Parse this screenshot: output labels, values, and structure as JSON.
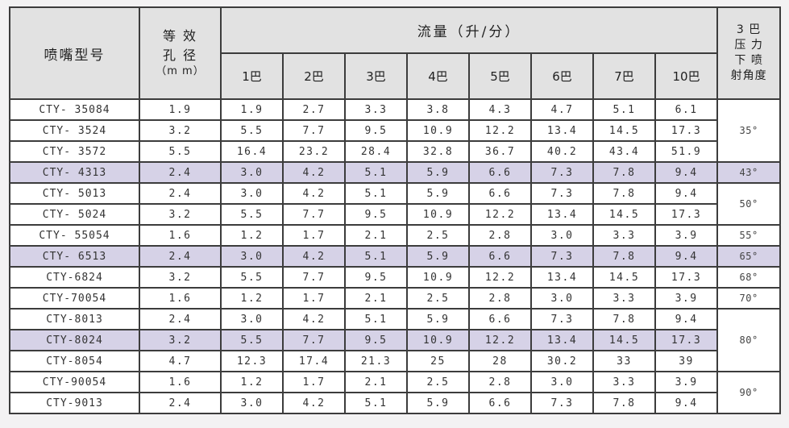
{
  "colors": {
    "canvas_bg": "#f3f2f3",
    "header_bg": "#e2e2e2",
    "highlight_bg": "#d6d2e7",
    "grid_border": "#3c3c3c",
    "row_bg": "#ffffff",
    "text": "#333333"
  },
  "table": {
    "header": {
      "model": "喷嘴型号",
      "aperture_lines": [
        "等 效",
        "孔 径",
        "（m m）"
      ],
      "flow_group": "流量（升/分）",
      "pressures": [
        "1巴",
        "2巴",
        "3巴",
        "4巴",
        "5巴",
        "6巴",
        "7巴",
        "10巴"
      ],
      "angle_lines": [
        "3 巴",
        "压 力",
        "下 喷",
        "射角度"
      ]
    },
    "rows": [
      {
        "model": "CTY- 35084",
        "aperture": "1.9",
        "flows": [
          "1.9",
          "2.7",
          "3.3",
          "3.8",
          "4.3",
          "4.7",
          "5.1",
          "6.1"
        ],
        "highlight": false,
        "angle": "35°",
        "angle_rowspan": 3
      },
      {
        "model": "CTY- 3524",
        "aperture": "3.2",
        "flows": [
          "5.5",
          "7.7",
          "9.5",
          "10.9",
          "12.2",
          "13.4",
          "14.5",
          "17.3"
        ],
        "highlight": false,
        "angle": null
      },
      {
        "model": "CTY- 3572",
        "aperture": "5.5",
        "flows": [
          "16.4",
          "23.2",
          "28.4",
          "32.8",
          "36.7",
          "40.2",
          "43.4",
          "51.9"
        ],
        "highlight": false,
        "angle": null
      },
      {
        "model": "CTY- 4313",
        "aperture": "2.4",
        "flows": [
          "3.0",
          "4.2",
          "5.1",
          "5.9",
          "6.6",
          "7.3",
          "7.8",
          "9.4"
        ],
        "highlight": true,
        "angle": "43°",
        "angle_rowspan": 1
      },
      {
        "model": "CTY- 5013",
        "aperture": "2.4",
        "flows": [
          "3.0",
          "4.2",
          "5.1",
          "5.9",
          "6.6",
          "7.3",
          "7.8",
          "9.4"
        ],
        "highlight": false,
        "angle": "50°",
        "angle_rowspan": 2
      },
      {
        "model": "CTY- 5024",
        "aperture": "3.2",
        "flows": [
          "5.5",
          "7.7",
          "9.5",
          "10.9",
          "12.2",
          "13.4",
          "14.5",
          "17.3"
        ],
        "highlight": false,
        "angle": null
      },
      {
        "model": "CTY- 55054",
        "aperture": "1.6",
        "flows": [
          "1.2",
          "1.7",
          "2.1",
          "2.5",
          "2.8",
          "3.0",
          "3.3",
          "3.9"
        ],
        "highlight": false,
        "angle": "55°",
        "angle_rowspan": 1
      },
      {
        "model": "CTY- 6513",
        "aperture": "2.4",
        "flows": [
          "3.0",
          "4.2",
          "5.1",
          "5.9",
          "6.6",
          "7.3",
          "7.8",
          "9.4"
        ],
        "highlight": true,
        "angle": "65°",
        "angle_rowspan": 1
      },
      {
        "model": "CTY-6824",
        "aperture": "3.2",
        "flows": [
          "5.5",
          "7.7",
          "9.5",
          "10.9",
          "12.2",
          "13.4",
          "14.5",
          "17.3"
        ],
        "highlight": false,
        "angle": "68°",
        "angle_rowspan": 1
      },
      {
        "model": "CTY-70054",
        "aperture": "1.6",
        "flows": [
          "1.2",
          "1.7",
          "2.1",
          "2.5",
          "2.8",
          "3.0",
          "3.3",
          "3.9"
        ],
        "highlight": false,
        "angle": "70°",
        "angle_rowspan": 1
      },
      {
        "model": "CTY-8013",
        "aperture": "2.4",
        "flows": [
          "3.0",
          "4.2",
          "5.1",
          "5.9",
          "6.6",
          "7.3",
          "7.8",
          "9.4"
        ],
        "highlight": false,
        "angle": "80°",
        "angle_rowspan": 3
      },
      {
        "model": "CTY-8024",
        "aperture": "3.2",
        "flows": [
          "5.5",
          "7.7",
          "9.5",
          "10.9",
          "12.2",
          "13.4",
          "14.5",
          "17.3"
        ],
        "highlight": true,
        "angle": null
      },
      {
        "model": "CTY-8054",
        "aperture": "4.7",
        "flows": [
          "12.3",
          "17.4",
          "21.3",
          "25",
          "28",
          "30.2",
          "33",
          "39"
        ],
        "highlight": false,
        "angle": null
      },
      {
        "model": "CTY-90054",
        "aperture": "1.6",
        "flows": [
          "1.2",
          "1.7",
          "2.1",
          "2.5",
          "2.8",
          "3.0",
          "3.3",
          "3.9"
        ],
        "highlight": false,
        "angle": "90°",
        "angle_rowspan": 2
      },
      {
        "model": "CTY-9013",
        "aperture": "2.4",
        "flows": [
          "3.0",
          "4.2",
          "5.1",
          "5.9",
          "6.6",
          "7.3",
          "7.8",
          "9.4"
        ],
        "highlight": false,
        "angle": null
      }
    ]
  }
}
